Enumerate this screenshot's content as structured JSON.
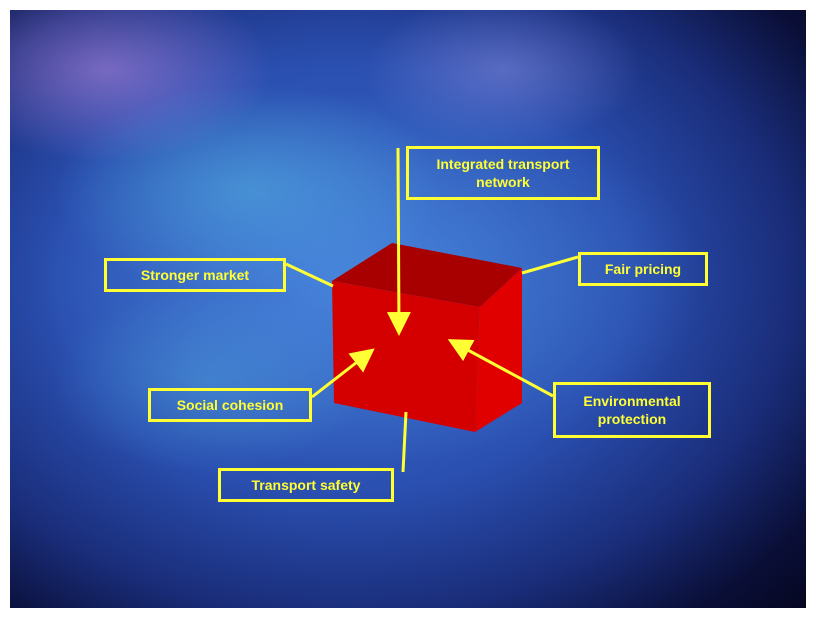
{
  "diagram": {
    "labels": {
      "integrated_transport_network": "Integrated transport\nnetwork",
      "stronger_market": "Stronger market",
      "fair_pricing": "Fair pricing",
      "social_cohesion": "Social cohesion",
      "environmental_protection": "Environmental\nprotection",
      "transport_safety": "Transport safety"
    },
    "colors": {
      "label": "#ffff33",
      "cube_front": "#d40000",
      "cube_top": "#a80000",
      "cube_side": "#e00000"
    }
  }
}
